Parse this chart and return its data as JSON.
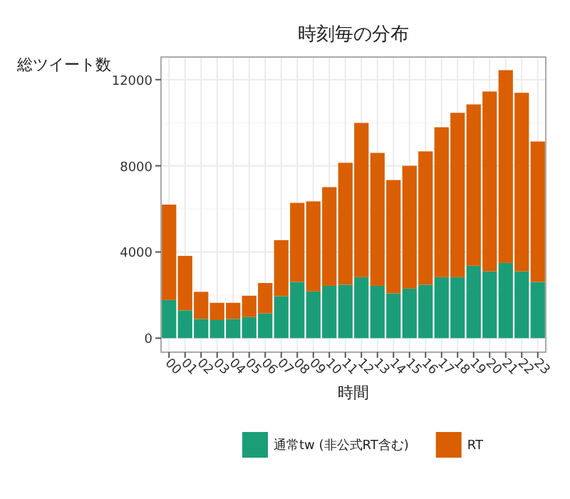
{
  "chart_data": {
    "type": "bar",
    "title": "時刻毎の分布",
    "xlabel": "時間",
    "ylabel": "総ツイート数",
    "categories": [
      "00",
      "01",
      "02",
      "03",
      "04",
      "05",
      "06",
      "07",
      "08",
      "09",
      "10",
      "11",
      "12",
      "13",
      "14",
      "15",
      "16",
      "17",
      "18",
      "19",
      "20",
      "21",
      "22",
      "23"
    ],
    "stacked": true,
    "series": [
      {
        "name": "通常tw (非公式RT含む)",
        "color": "#1b9e77",
        "values": [
          1770,
          1290,
          890,
          840,
          890,
          980,
          1150,
          1950,
          2610,
          2170,
          2430,
          2480,
          2830,
          2430,
          2080,
          2300,
          2480,
          2830,
          2830,
          3360,
          3100,
          3490,
          3100,
          2610
        ]
      },
      {
        "name": "RT",
        "color": "#d95f02",
        "values": [
          4430,
          2530,
          1260,
          800,
          750,
          990,
          1410,
          2600,
          3670,
          4180,
          4580,
          5660,
          7160,
          6170,
          5260,
          5700,
          6190,
          6960,
          7630,
          7490,
          8350,
          8950,
          8290,
          6520
        ]
      }
    ],
    "ylim": [
      -650,
      13050
    ],
    "yticks": [
      0,
      4000,
      8000,
      12000
    ],
    "grid": true,
    "legend": "bottom"
  }
}
